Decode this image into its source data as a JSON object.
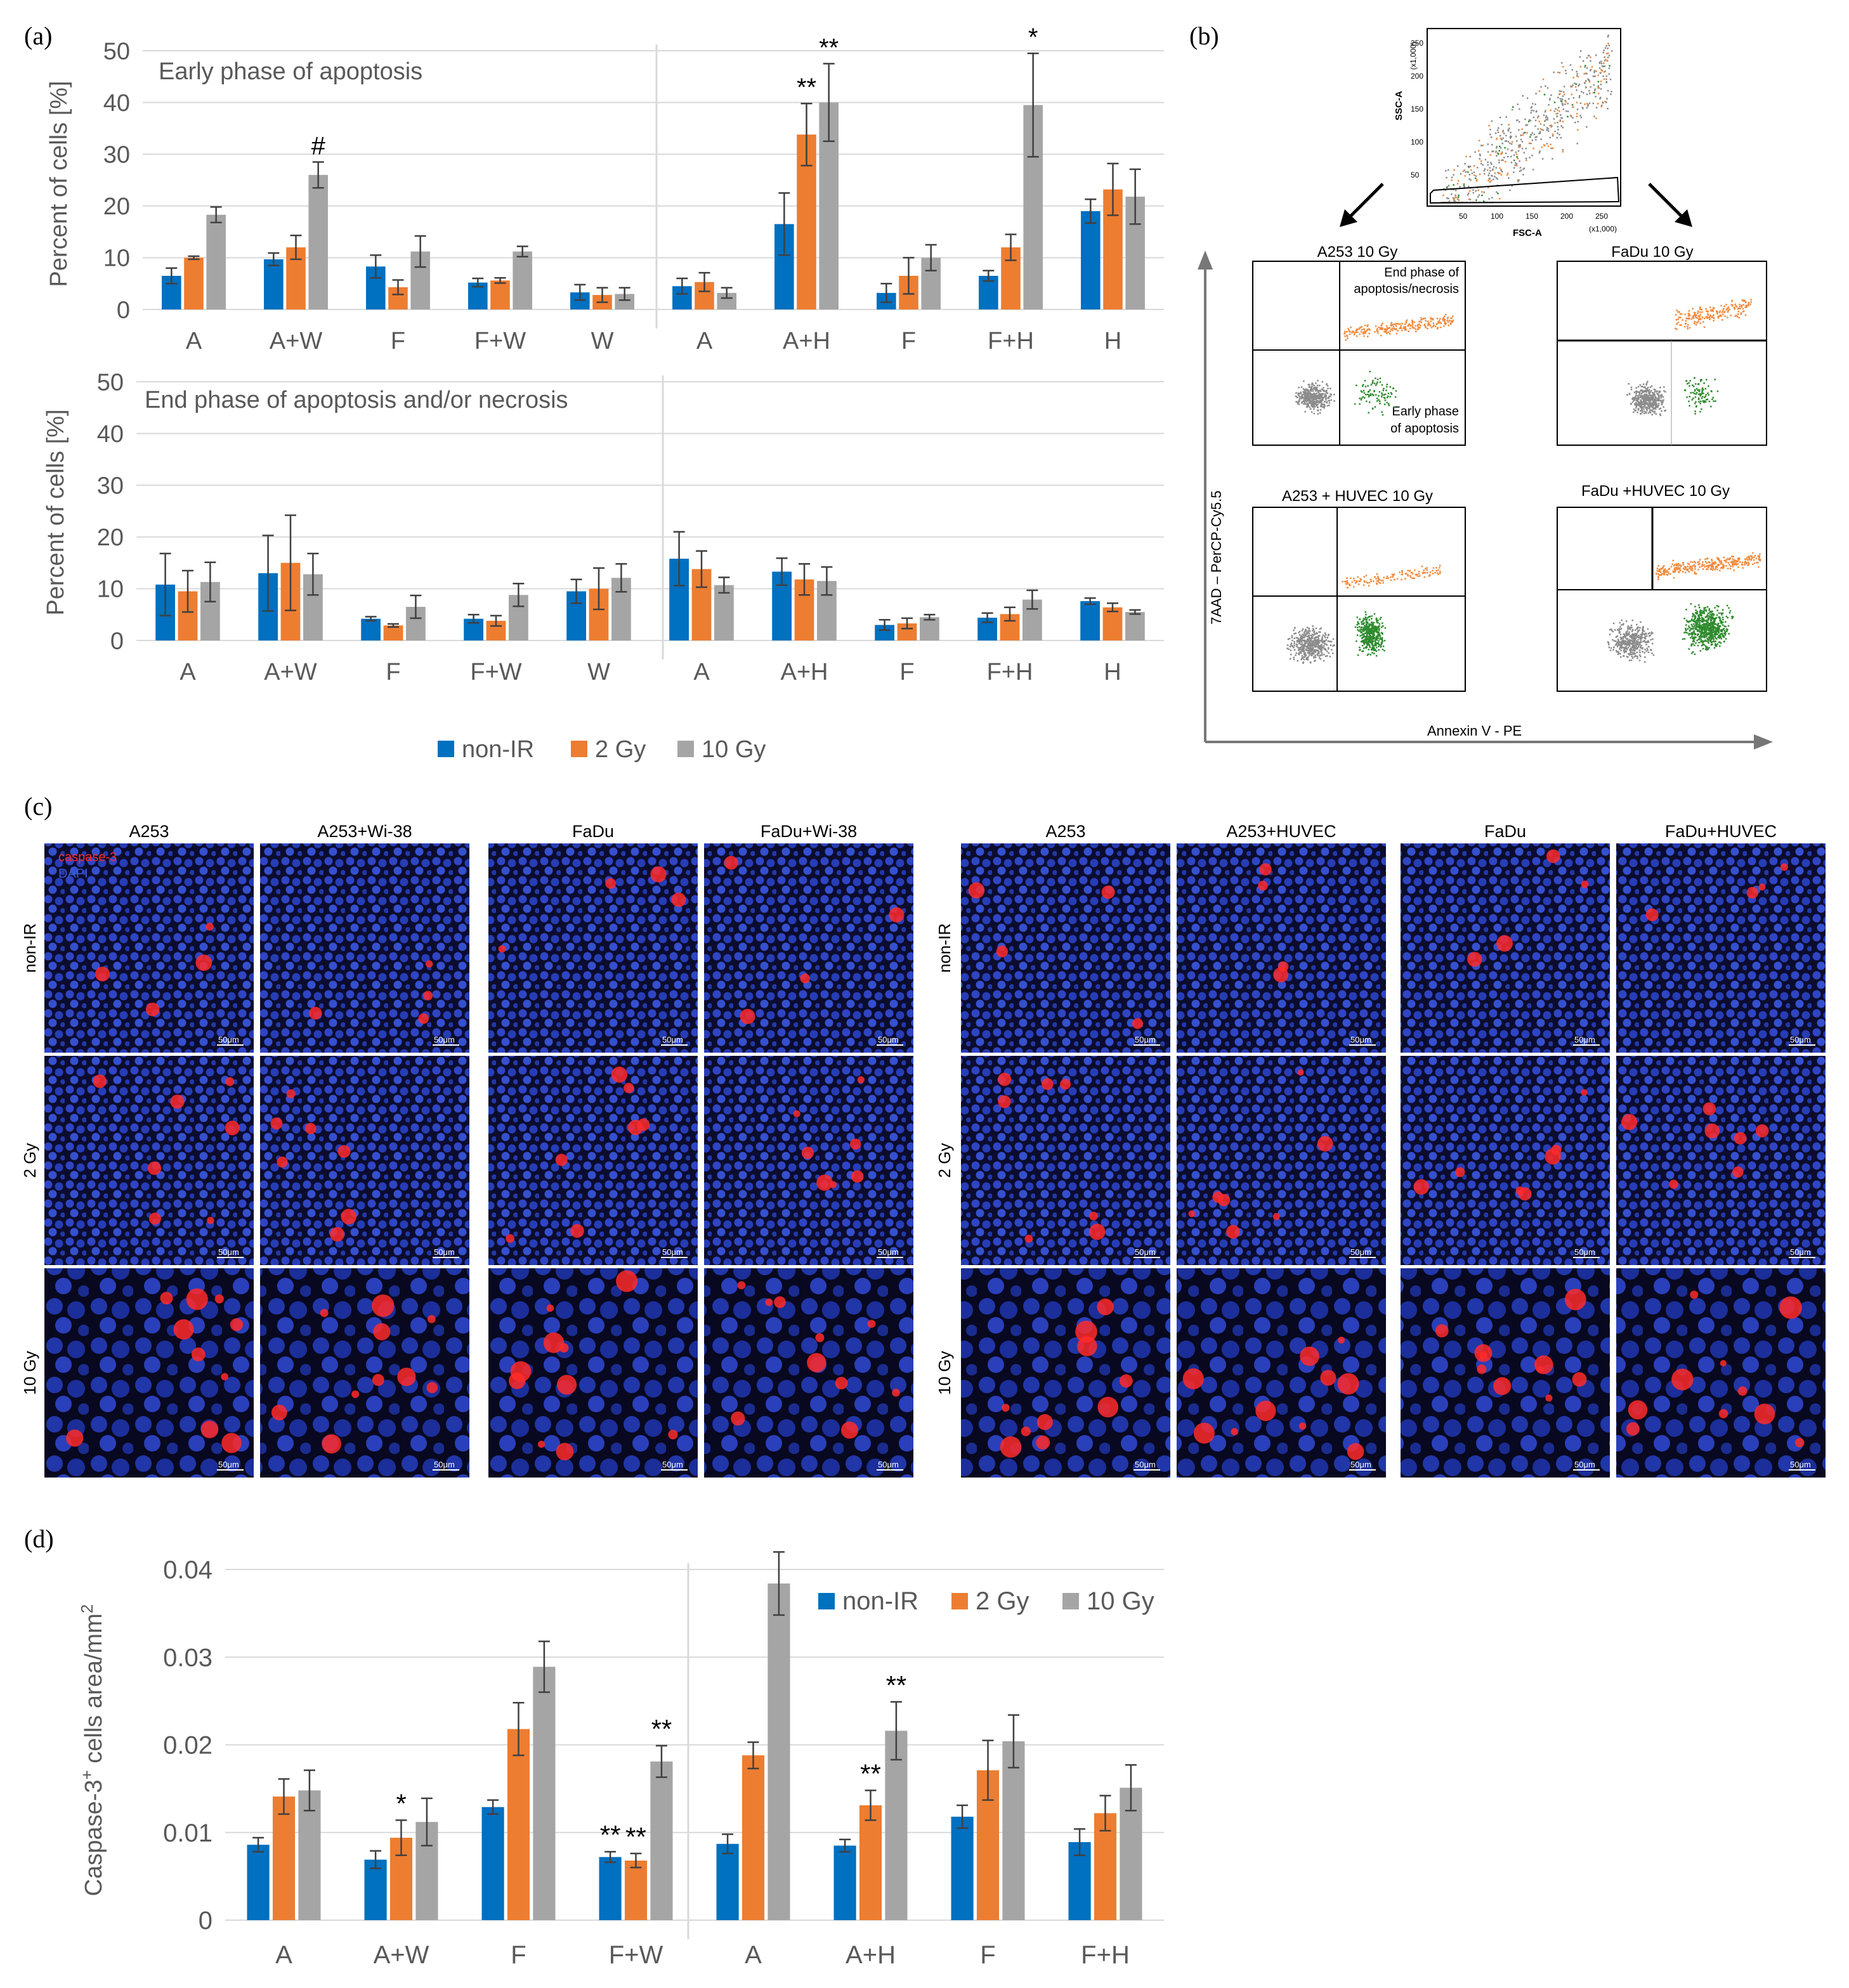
{
  "panel_labels": {
    "a": "(a)",
    "b": "(b)",
    "c": "(c)",
    "d": "(d)"
  },
  "colors": {
    "non_ir": "#0070C0",
    "gy2": "#ED7D31",
    "gy10": "#A5A5A5",
    "grid": "#D9D9D9",
    "axis_text": "#595959",
    "orange_dots": "#F28A3C",
    "green_dots": "#2E8B2E",
    "gray_dots": "#8C8C8C"
  },
  "chart_data": [
    {
      "type": "bar",
      "id": "a_top",
      "title": "Early phase of apoptosis",
      "ylabel": "Percent of cells [%]",
      "ylim": [
        0,
        50
      ],
      "yticks": [
        "0",
        "10",
        "20",
        "30",
        "40",
        "50"
      ],
      "categories": [
        "A",
        "A+W",
        "F",
        "F+W",
        "W",
        "A",
        "A+H",
        "F",
        "F+H",
        "H"
      ],
      "series": [
        {
          "name": "non-IR",
          "values": [
            6.5,
            9.7,
            8.3,
            5.2,
            3.3,
            4.5,
            16.5,
            3.2,
            6.5,
            19
          ],
          "errors": [
            1.5,
            1.2,
            2.2,
            0.8,
            1.5,
            1.5,
            6,
            1.8,
            1,
            2.3
          ]
        },
        {
          "name": "2 Gy",
          "values": [
            10,
            12,
            4.3,
            5.6,
            2.8,
            5.3,
            33.8,
            6.5,
            12,
            23.2
          ],
          "errors": [
            0.3,
            2.3,
            1.4,
            0.5,
            1.4,
            1.8,
            6,
            3.5,
            2.5,
            5
          ]
        },
        {
          "name": "10 Gy",
          "values": [
            18.3,
            26,
            11.2,
            11.2,
            3,
            3.2,
            40,
            10,
            39.5,
            21.8
          ],
          "errors": [
            1.5,
            2.5,
            3,
            1,
            1.2,
            1,
            7.5,
            2.5,
            10,
            5.3
          ]
        }
      ],
      "annotations": [
        {
          "category": 1,
          "series": 2,
          "text": "#"
        },
        {
          "category": 6,
          "series": 1,
          "text": "**"
        },
        {
          "category": 6,
          "series": 2,
          "text": "**"
        },
        {
          "category": 8,
          "series": 2,
          "text": "*"
        }
      ]
    },
    {
      "type": "bar",
      "id": "a_bottom",
      "title": "End phase of apoptosis and/or necrosis",
      "ylabel": "Percent of cells [%]",
      "ylim": [
        0,
        50
      ],
      "yticks": [
        "0",
        "10",
        "20",
        "30",
        "40",
        "50"
      ],
      "categories": [
        "A",
        "A+W",
        "F",
        "F+W",
        "W",
        "A",
        "A+H",
        "F",
        "F+H",
        "H"
      ],
      "series": [
        {
          "name": "non-IR",
          "values": [
            10.8,
            13,
            4.2,
            4.2,
            9.5,
            15.8,
            13.3,
            3,
            4.4,
            7.6
          ],
          "errors": [
            6,
            7.3,
            0.4,
            0.8,
            2.3,
            5.2,
            2.6,
            1,
            0.9,
            0.6
          ]
        },
        {
          "name": "2 Gy",
          "values": [
            9.5,
            15,
            2.9,
            3.8,
            10,
            13.8,
            11.8,
            3.3,
            5.1,
            6.4
          ],
          "errors": [
            4,
            9.2,
            0.3,
            1,
            4,
            3.5,
            3,
            1,
            1.3,
            0.8
          ]
        },
        {
          "name": "10 Gy",
          "values": [
            11.3,
            12.8,
            6.5,
            8.8,
            12.1,
            10.7,
            11.5,
            4.5,
            7.9,
            5.5
          ],
          "errors": [
            3.8,
            4,
            2.2,
            2.2,
            2.7,
            1.5,
            2.7,
            0.5,
            1.8,
            0.4
          ]
        }
      ]
    },
    {
      "type": "bar",
      "id": "d",
      "ylabel_prefix": "Caspase-3",
      "ylabel_sup": "+",
      "ylabel_suffix": " cells area/mm",
      "ylabel_sup2": "2",
      "ylim": [
        0,
        0.04
      ],
      "yticks": [
        "0",
        "0.01",
        "0.02",
        "0.03",
        "0.04"
      ],
      "categories": [
        "A",
        "A+W",
        "F",
        "F+W",
        "A",
        "A+H",
        "F",
        "F+H"
      ],
      "series": [
        {
          "name": "non-IR",
          "values": [
            0.0086,
            0.0069,
            0.0129,
            0.0072,
            0.0087,
            0.0085,
            0.0118,
            0.0089
          ],
          "errors": [
            0.0008,
            0.001,
            0.0008,
            0.0006,
            0.0011,
            0.0007,
            0.0013,
            0.0015
          ]
        },
        {
          "name": "2 Gy",
          "values": [
            0.0141,
            0.0094,
            0.0218,
            0.0068,
            0.0188,
            0.0131,
            0.0171,
            0.0122
          ],
          "errors": [
            0.002,
            0.002,
            0.003,
            0.0008,
            0.0015,
            0.0017,
            0.0034,
            0.002
          ]
        },
        {
          "name": "10 Gy",
          "values": [
            0.0148,
            0.0112,
            0.0289,
            0.0181,
            0.0384,
            0.0216,
            0.0204,
            0.0151
          ],
          "errors": [
            0.0023,
            0.0027,
            0.0029,
            0.0018,
            0.0036,
            0.0033,
            0.003,
            0.0026
          ]
        }
      ],
      "annotations": [
        {
          "category": 1,
          "series": 1,
          "text": "*"
        },
        {
          "category": 3,
          "series": 0,
          "text": "**"
        },
        {
          "category": 3,
          "series": 1,
          "text": "**"
        },
        {
          "category": 3,
          "series": 2,
          "text": "**"
        },
        {
          "category": 5,
          "series": 1,
          "text": "**"
        },
        {
          "category": 5,
          "series": 2,
          "text": "**"
        }
      ]
    }
  ],
  "legend": {
    "items": [
      "non-IR",
      "2 Gy",
      "10 Gy"
    ]
  },
  "flow": {
    "gating": {
      "ylabel": "SSC-A",
      "xlabel": "FSC-A",
      "yscale": "(x1,000)",
      "xscale": "(x1,000)",
      "xticks": [
        "50",
        "100",
        "150",
        "200",
        "250"
      ],
      "yticks": [
        "50",
        "100",
        "150",
        "200",
        "250"
      ]
    },
    "plots": [
      {
        "title": "A253 10 Gy",
        "q_upper": "End phase of apoptosis/necrosis",
        "q_lower": "Early phase of apoptosis"
      },
      {
        "title": "FaDu 10 Gy"
      },
      {
        "title": "A253 + HUVEC 10 Gy"
      },
      {
        "title": "FaDu +HUVEC 10 Gy"
      }
    ],
    "xlabel": "Annexin V - PE",
    "ylabel": "7AAD – PerCP-Cy5.5"
  },
  "micro": {
    "left": {
      "cols": [
        "A253",
        "A253+Wi-38",
        "FaDu",
        "FaDu+Wi-38"
      ],
      "rows": [
        "non-IR",
        "2 Gy",
        "10 Gy"
      ]
    },
    "right": {
      "cols": [
        "A253",
        "A253+HUVEC",
        "FaDu",
        "FaDu+HUVEC"
      ],
      "rows": [
        "non-IR",
        "2 Gy",
        "10 Gy"
      ]
    },
    "legend_caspase": "caspase-3",
    "legend_dapi": "DAPI",
    "scale_bar": "50μm",
    "caspase_color": "#FF2A2A",
    "dapi_color": "#3A5BD9"
  }
}
